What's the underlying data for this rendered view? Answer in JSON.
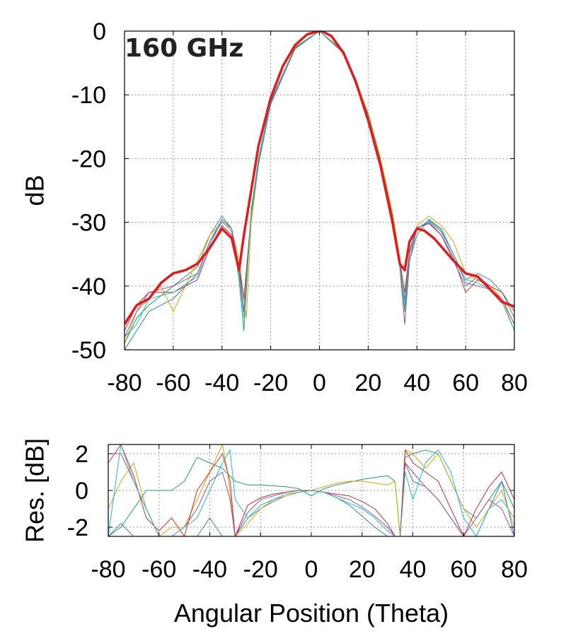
{
  "chart_data": [
    {
      "type": "line",
      "annotation": "160 GHz",
      "xlabel": "",
      "ylabel": "dB",
      "xlim": [
        -80,
        80
      ],
      "ylim": [
        -50,
        0
      ],
      "xticks": [
        -80,
        -60,
        -40,
        -20,
        0,
        20,
        40,
        60,
        80
      ],
      "yticks": [
        0,
        -10,
        -20,
        -30,
        -40,
        -50
      ],
      "grid": true,
      "series": [
        {
          "color": "#e41a1c",
          "highlight": true,
          "x": [
            -80,
            -75,
            -70,
            -65,
            -60,
            -55,
            -50,
            -45,
            -40,
            -36,
            -33,
            -31,
            -28,
            -25,
            -20,
            -15,
            -10,
            -5,
            0,
            1,
            5,
            10,
            15,
            20,
            25,
            30,
            33,
            35,
            37,
            40,
            43,
            47,
            50,
            55,
            60,
            65,
            70,
            75,
            80
          ],
          "y": [
            -46,
            -43,
            -42,
            -39.5,
            -38,
            -37.5,
            -36.5,
            -34,
            -31,
            -32.5,
            -37.5,
            -32,
            -25,
            -18,
            -10.5,
            -5.5,
            -2.2,
            -0.5,
            0,
            0,
            -0.8,
            -3.5,
            -8,
            -14,
            -21,
            -30,
            -36.5,
            -37.5,
            -33,
            -31,
            -31.3,
            -32.5,
            -33.8,
            -36,
            -38,
            -38.5,
            -40.5,
            -42.5,
            -43.2
          ]
        },
        {
          "color": "#1b9e77",
          "x": [
            -80,
            -75,
            -70,
            -60,
            -50,
            -45,
            -40,
            -36,
            -33,
            -31,
            -28,
            -25,
            -20,
            -10,
            0,
            10,
            20,
            25,
            30,
            33,
            35,
            37,
            40,
            45,
            50,
            55,
            60,
            65,
            70,
            75,
            80
          ],
          "y": [
            -49,
            -45,
            -43,
            -40,
            -37,
            -32,
            -29,
            -31,
            -39,
            -47,
            -28,
            -20,
            -11,
            -2.5,
            0,
            -3.2,
            -13,
            -20,
            -29,
            -36,
            -44,
            -36,
            -32,
            -29.5,
            -31,
            -35,
            -39,
            -38,
            -39,
            -41,
            -45
          ]
        },
        {
          "color": "#377eb8",
          "x": [
            -80,
            -75,
            -70,
            -60,
            -50,
            -45,
            -40,
            -36,
            -33,
            -31,
            -28,
            -25,
            -20,
            -10,
            0,
            10,
            20,
            25,
            30,
            33,
            35,
            37,
            40,
            45,
            50,
            55,
            60,
            65,
            70,
            75,
            80
          ],
          "y": [
            -50,
            -47,
            -44,
            -42,
            -38,
            -33,
            -30,
            -31,
            -38,
            -44,
            -29,
            -21,
            -11.5,
            -2.8,
            0,
            -3.5,
            -13.5,
            -20.5,
            -29.5,
            -37,
            -42,
            -35,
            -31,
            -30,
            -32,
            -36,
            -40,
            -38.5,
            -40,
            -42,
            -46
          ]
        },
        {
          "color": "#e6a100",
          "x": [
            -80,
            -75,
            -70,
            -65,
            -60,
            -55,
            -50,
            -45,
            -40,
            -36,
            -33,
            -30,
            -28,
            -25,
            -20,
            -10,
            0,
            10,
            20,
            25,
            30,
            33,
            35,
            37,
            40,
            45,
            50,
            55,
            60,
            65,
            70,
            75,
            80
          ],
          "y": [
            -49,
            -44,
            -42,
            -40,
            -44,
            -40,
            -36,
            -32,
            -30,
            -31,
            -36,
            -45,
            -30,
            -21,
            -11,
            -2.6,
            0,
            -3.1,
            -12.8,
            -19.8,
            -28.5,
            -35.5,
            -43,
            -35,
            -30.5,
            -29,
            -30.5,
            -33,
            -38,
            -39,
            -40,
            -42,
            -47
          ]
        },
        {
          "color": "#984ea3",
          "x": [
            -80,
            -75,
            -70,
            -60,
            -50,
            -45,
            -40,
            -36,
            -33,
            -31,
            -28,
            -25,
            -20,
            -10,
            0,
            10,
            20,
            25,
            30,
            33,
            35,
            37,
            40,
            45,
            50,
            55,
            60,
            65,
            70,
            75,
            80
          ],
          "y": [
            -48,
            -44,
            -41,
            -40,
            -38,
            -33,
            -29.5,
            -31,
            -37,
            -44,
            -28.5,
            -20.5,
            -11,
            -2.7,
            0,
            -3.3,
            -13.2,
            -20.2,
            -29.2,
            -37,
            -46,
            -36,
            -31,
            -29.8,
            -31.5,
            -35,
            -39.5,
            -40,
            -40.5,
            -42,
            -46
          ]
        },
        {
          "color": "#d62728",
          "x": [
            -80,
            -75,
            -70,
            -60,
            -50,
            -45,
            -40,
            -36,
            -33,
            -31,
            -28,
            -25,
            -20,
            -10,
            0,
            10,
            20,
            25,
            30,
            33,
            35,
            37,
            40,
            45,
            50,
            55,
            60,
            65,
            70,
            75,
            80
          ],
          "y": [
            -47,
            -43,
            -41,
            -41,
            -39,
            -34,
            -30.5,
            -32,
            -37,
            -42,
            -28.8,
            -20.8,
            -11.2,
            -2.7,
            0,
            -3.4,
            -13.4,
            -20.4,
            -29.4,
            -36,
            -41,
            -34.5,
            -30.8,
            -30.2,
            -32,
            -35.5,
            -41,
            -39,
            -40,
            -41,
            -44
          ]
        },
        {
          "color": "#17becf",
          "x": [
            -80,
            -75,
            -70,
            -60,
            -50,
            -45,
            -40,
            -36,
            -33,
            -31,
            -28,
            -25,
            -20,
            -10,
            0,
            10,
            20,
            25,
            30,
            33,
            35,
            37,
            40,
            45,
            50,
            55,
            60,
            65,
            70,
            75,
            80
          ],
          "y": [
            -48,
            -46,
            -42,
            -41,
            -38.5,
            -33.5,
            -29.8,
            -31.5,
            -38,
            -45,
            -28.7,
            -20.7,
            -11.3,
            -2.8,
            0,
            -3.3,
            -13.3,
            -20.3,
            -29.3,
            -36.5,
            -43,
            -35,
            -31,
            -29.7,
            -31.2,
            -35,
            -39,
            -39.5,
            -40.5,
            -42.5,
            -47
          ]
        }
      ]
    },
    {
      "type": "line",
      "xlabel": "Angular Position (Theta)",
      "ylabel": "Res. [dB]",
      "xlim": [
        -80,
        80
      ],
      "ylim": [
        -2.5,
        2.5
      ],
      "xticks": [
        -80,
        -60,
        -40,
        -20,
        0,
        20,
        40,
        60,
        80
      ],
      "yticks": [
        2,
        0,
        -2
      ],
      "grid": true,
      "series": [
        {
          "color": "#1b9e77",
          "x": [
            -80,
            -75,
            -70,
            -65,
            -60,
            -55,
            -50,
            -45,
            -40,
            -35,
            -30,
            -25,
            -20,
            -10,
            -5,
            0,
            5,
            10,
            20,
            25,
            30,
            33,
            35,
            37,
            40,
            45,
            50,
            55,
            60,
            65,
            70,
            75,
            80
          ],
          "y": [
            -2.5,
            -2,
            -1,
            0,
            0,
            0,
            0.5,
            1.8,
            1.5,
            1.2,
            0.5,
            0.3,
            0.3,
            0.2,
            0.1,
            -0.3,
            0.1,
            0.3,
            0.6,
            0.7,
            0.8,
            0.5,
            -2.5,
            1.8,
            2,
            2.2,
            2,
            0.5,
            -1,
            -1.5,
            -0.5,
            0.5,
            -1
          ]
        },
        {
          "color": "#377eb8",
          "x": [
            -80,
            -75,
            -70,
            -65,
            -60,
            -55,
            -50,
            -45,
            -40,
            -35,
            -30,
            -25,
            -20,
            -15,
            -10,
            -5,
            0,
            5,
            10,
            15,
            20,
            25,
            30,
            33,
            35,
            37,
            40,
            45,
            50,
            55,
            60,
            65,
            70,
            75,
            80
          ],
          "y": [
            -2.5,
            -1.8,
            -2.5,
            -2.5,
            -2.5,
            -2.5,
            -2.5,
            -2.5,
            -1.5,
            -2.5,
            -2.5,
            -1.5,
            -1,
            -0.6,
            -0.3,
            -0.1,
            0,
            -0.1,
            -0.4,
            -0.8,
            -1.4,
            -2,
            -2.5,
            -2.5,
            -2.5,
            1.5,
            0.5,
            0.2,
            -0.5,
            -1.5,
            -2.5,
            -2.5,
            -1,
            0.5,
            -2.5
          ]
        },
        {
          "color": "#e6a100",
          "x": [
            -80,
            -75,
            -70,
            -65,
            -60,
            -55,
            -50,
            -45,
            -40,
            -35,
            -33,
            -30,
            -25,
            -20,
            -15,
            -10,
            -5,
            0,
            5,
            10,
            15,
            20,
            25,
            30,
            33,
            35,
            37,
            40,
            45,
            50,
            55,
            60,
            65,
            70,
            75,
            80
          ],
          "y": [
            -1,
            0.5,
            1.5,
            -1,
            -2.5,
            -2,
            -2,
            -0.5,
            1,
            2.5,
            1,
            -2.5,
            -1.8,
            -1,
            -0.5,
            -0.3,
            -0.1,
            0,
            0.2,
            0.4,
            0.5,
            0.5,
            0.4,
            0.3,
            0.5,
            -2.5,
            2.2,
            2,
            1.2,
            2,
            0.5,
            -1,
            -2,
            -1,
            0,
            -2
          ]
        },
        {
          "color": "#984ea3",
          "x": [
            -80,
            -75,
            -70,
            -65,
            -60,
            -55,
            -50,
            -45,
            -40,
            -35,
            -32,
            -30,
            -25,
            -20,
            -15,
            -10,
            -5,
            0,
            5,
            10,
            15,
            20,
            25,
            30,
            33,
            35,
            37,
            40,
            45,
            50,
            55,
            60,
            65,
            70,
            75,
            80
          ],
          "y": [
            2,
            2,
            0.5,
            -1,
            -2.5,
            -2.5,
            -2,
            -1,
            0.5,
            1,
            -0.5,
            -2.5,
            -1.2,
            -0.5,
            -0.3,
            -0.1,
            0,
            0,
            -0.1,
            -0.3,
            -0.5,
            -0.9,
            -1.4,
            -2,
            -2.5,
            -2.5,
            1.5,
            1,
            0.2,
            -0.5,
            -1.5,
            -2.5,
            -1.5,
            -0.5,
            -1,
            -2.5
          ]
        },
        {
          "color": "#d62728",
          "x": [
            -80,
            -75,
            -70,
            -65,
            -60,
            -55,
            -50,
            -45,
            -40,
            -35,
            -32,
            -30,
            -25,
            -20,
            -15,
            -10,
            -5,
            0,
            5,
            10,
            15,
            20,
            25,
            30,
            33,
            35,
            37,
            40,
            45,
            50,
            55,
            60,
            65,
            70,
            75,
            80
          ],
          "y": [
            1.5,
            2.5,
            0.8,
            -1.5,
            -2.2,
            -1.5,
            -2.5,
            0,
            1,
            2,
            0.5,
            -2.5,
            -0.8,
            -0.4,
            -0.2,
            -0.1,
            0,
            0,
            -0.1,
            -0.2,
            -0.3,
            -0.6,
            -1,
            -1.8,
            -2.5,
            -2.5,
            2.2,
            1.5,
            1,
            0.5,
            -1,
            -2.5,
            -1,
            0.2,
            1,
            -0.5
          ]
        },
        {
          "color": "#17becf",
          "x": [
            -80,
            -75,
            -70,
            -65,
            -60,
            -55,
            -50,
            -45,
            -40,
            -35,
            -32,
            -30,
            -25,
            -20,
            -15,
            -10,
            -5,
            0,
            5,
            10,
            15,
            20,
            25,
            30,
            33,
            35,
            37,
            40,
            45,
            50,
            55,
            60,
            65,
            70,
            75,
            80
          ],
          "y": [
            -2.5,
            2.5,
            0.5,
            -1,
            -2.5,
            -2.5,
            -2,
            -1.5,
            0,
            1.5,
            2.2,
            -0.5,
            -1.5,
            -0.8,
            -0.5,
            -0.2,
            -0.1,
            0,
            -0.1,
            -0.4,
            -0.7,
            -1,
            -1.5,
            -2.2,
            -2.5,
            -2.5,
            1,
            -0.5,
            1.5,
            2.2,
            1,
            -1.5,
            -2.5,
            -1,
            -0.5,
            -1.5
          ]
        }
      ]
    }
  ]
}
